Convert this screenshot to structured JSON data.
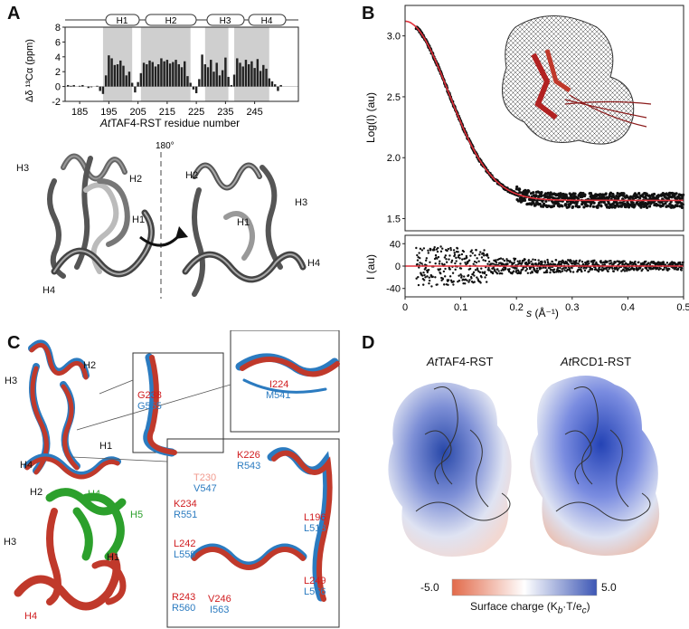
{
  "panels": {
    "A": "A",
    "B": "B",
    "C": "C",
    "D": "D"
  },
  "panel_a": {
    "helices": [
      "H1",
      "H2",
      "H3",
      "H4"
    ],
    "y_label": "Δδ ¹³Cα (ppm)",
    "x_label_italic": "At",
    "x_label_rest": "TAF4-RST residue number",
    "rotation_label": "180°",
    "structure_labels_left": [
      "H3",
      "H2",
      "H1",
      "H4"
    ],
    "structure_labels_right": [
      "H2",
      "H3",
      "H1",
      "H4"
    ]
  },
  "panel_b": {
    "y_label_top": "Log(I) (au)",
    "y_label_bottom": "I (au)",
    "x_label_italic": "s",
    "x_label_rest": " (Å⁻¹)"
  },
  "panel_c": {
    "top_labels": [
      "H2",
      "H3",
      "H1",
      "H4"
    ],
    "bottom_labels": [
      "H2",
      "H3",
      "H1",
      "H4"
    ],
    "green_labels": [
      "H4",
      "H5"
    ],
    "inset1": {
      "red": "G238",
      "blue": "G555"
    },
    "inset2": {
      "red": "I224",
      "blue": "M541"
    },
    "inset3": [
      {
        "red": "K226",
        "blue": "R543"
      },
      {
        "pink": "T230",
        "blue": "V547"
      },
      {
        "red": "K234",
        "blue": "R551"
      },
      {
        "red": "L196",
        "blue": "L513"
      },
      {
        "red": "L242",
        "blue": "L559"
      },
      {
        "red": "L249",
        "blue": "L566"
      },
      {
        "red": "R243",
        "blue": "R560"
      },
      {
        "red": "V246",
        "blue": "I563"
      }
    ]
  },
  "panel_d": {
    "title1_italic": "At",
    "title1_rest": "TAF4-RST",
    "title2_italic": "At",
    "title2_rest": "RCD1-RST",
    "scale_min": "-5.0",
    "scale_max": "5.0",
    "scale_label": "Surface charge (K",
    "scale_label_sub": "b",
    "scale_label_rest": "·T/e",
    "scale_label_sub2": "c",
    "scale_label_end": ")"
  },
  "chart_data": [
    {
      "type": "bar",
      "title": "",
      "xlabel": "AtTAF4-RST residue number",
      "ylabel": "Δδ 13Cα (ppm)",
      "xlim": [
        180,
        260
      ],
      "ylim": [
        -2,
        8
      ],
      "xticks": [
        185,
        195,
        205,
        215,
        225,
        235,
        245
      ],
      "yticks": [
        -2,
        0,
        2,
        4,
        6,
        8
      ],
      "shaded_helices": [
        [
          193,
          203
        ],
        [
          206,
          223
        ],
        [
          228,
          236
        ],
        [
          238,
          250
        ]
      ],
      "x": [
        181,
        182,
        183,
        184,
        185,
        186,
        187,
        188,
        189,
        190,
        191,
        192,
        193,
        194,
        195,
        196,
        197,
        198,
        199,
        200,
        201,
        202,
        203,
        204,
        205,
        206,
        207,
        208,
        209,
        210,
        211,
        212,
        213,
        214,
        215,
        216,
        217,
        218,
        219,
        220,
        221,
        222,
        223,
        224,
        225,
        226,
        227,
        228,
        229,
        230,
        231,
        232,
        233,
        234,
        235,
        236,
        237,
        238,
        239,
        240,
        241,
        242,
        243,
        244,
        245,
        246,
        247,
        248,
        249,
        250,
        251,
        252,
        253,
        254
      ],
      "values": [
        0.2,
        0.1,
        0.2,
        0.0,
        0.1,
        0.2,
        0.0,
        -0.2,
        -0.1,
        0.0,
        0.1,
        -0.6,
        -1.0,
        1.5,
        4.2,
        3.8,
        2.9,
        3.0,
        3.5,
        2.8,
        1.5,
        2.0,
        0.5,
        -0.8,
        0.6,
        1.8,
        3.2,
        3.0,
        3.5,
        3.3,
        2.7,
        3.0,
        3.8,
        3.4,
        3.6,
        3.1,
        3.3,
        3.6,
        3.0,
        2.6,
        3.4,
        1.4,
        0.5,
        -0.4,
        -0.9,
        1.0,
        4.3,
        3.0,
        2.6,
        3.6,
        2.0,
        3.2,
        1.5,
        2.2,
        3.9,
        1.3,
        0.2,
        1.6,
        3.8,
        3.2,
        2.7,
        3.6,
        3.0,
        3.4,
        2.5,
        3.7,
        2.1,
        2.9,
        2.4,
        1.1,
        0.7,
        0.3,
        -0.6,
        0.2
      ]
    },
    {
      "type": "scatter",
      "title": "",
      "xlabel": "s (Å⁻¹)",
      "ylabel": "Log(I) (au)",
      "xlim": [
        0,
        0.5
      ],
      "ylim": [
        1.4,
        3.25
      ],
      "xticks": [
        0,
        0.1,
        0.2,
        0.3,
        0.4,
        0.5
      ],
      "yticks": [
        1.5,
        2.0,
        2.5,
        3.0
      ],
      "series": [
        {
          "values_description_free": true,
          "x_range": [
            0.02,
            0.5
          ],
          "y_start": 3.12,
          "y_plateau": 1.65
        }
      ]
    },
    {
      "type": "scatter",
      "title": "",
      "xlabel": "s (Å⁻¹)",
      "ylabel": "I (au)",
      "xlim": [
        0,
        0.5
      ],
      "ylim": [
        -55,
        55
      ],
      "yticks": [
        -40,
        0,
        40
      ]
    }
  ]
}
